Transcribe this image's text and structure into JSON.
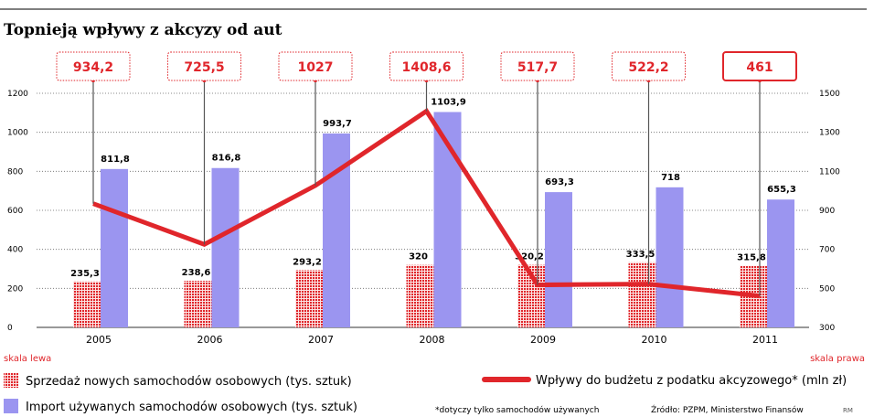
{
  "chart_data": {
    "type": "bar+line",
    "title": "Topnieją wpływy z akcyzy od aut",
    "categories": [
      "2005",
      "2006",
      "2007",
      "2008",
      "2009",
      "2010",
      "2011"
    ],
    "series": [
      {
        "name": "Sprzedaż nowych samochodów osobowych (tys. sztuk)",
        "type": "bar",
        "axis": "left",
        "color": "#e0262b",
        "values": [
          235.3,
          238.6,
          293.2,
          320,
          320.2,
          333.5,
          315.8
        ],
        "labels": [
          "235,3",
          "238,6",
          "293,2",
          "320",
          "320,2",
          "333,5",
          "315,8"
        ]
      },
      {
        "name": "Import używanych samochodów osobowych (tys. sztuk)",
        "type": "bar",
        "axis": "left",
        "color": "#9b95f0",
        "values": [
          811.8,
          816.8,
          993.7,
          1103.9,
          693.3,
          718,
          655.3
        ],
        "labels": [
          "811,8",
          "816,8",
          "993,7",
          "1103,9",
          "693,3",
          "718",
          "655,3"
        ]
      },
      {
        "name": "Wpływy do budżetu z podatku akcyzowego* (mln zł)",
        "type": "line",
        "axis": "right",
        "color": "#e0262b",
        "values": [
          934.2,
          725.5,
          1027,
          1408.6,
          517.7,
          522.2,
          461
        ],
        "labels": [
          "934,2",
          "725,5",
          "1027",
          "1408,6",
          "517,7",
          "522,2",
          "461"
        ]
      }
    ],
    "left_axis": {
      "label": "skala lewa",
      "range": [
        0,
        1200
      ],
      "ticks": [
        "0",
        "200",
        "400",
        "600",
        "800",
        "1000",
        "1200"
      ]
    },
    "right_axis": {
      "label": "skala prawa",
      "range": [
        300,
        1500
      ],
      "ticks": [
        "300",
        "500",
        "700",
        "900",
        "1100",
        "1300",
        "1500"
      ]
    },
    "grid": "dotted horizontal",
    "legend": "bottom",
    "footnote": "*dotyczy tylko samochodów używanych",
    "source": "Źródło: PZPM, Ministerstwo Finansów",
    "author": "RM"
  }
}
